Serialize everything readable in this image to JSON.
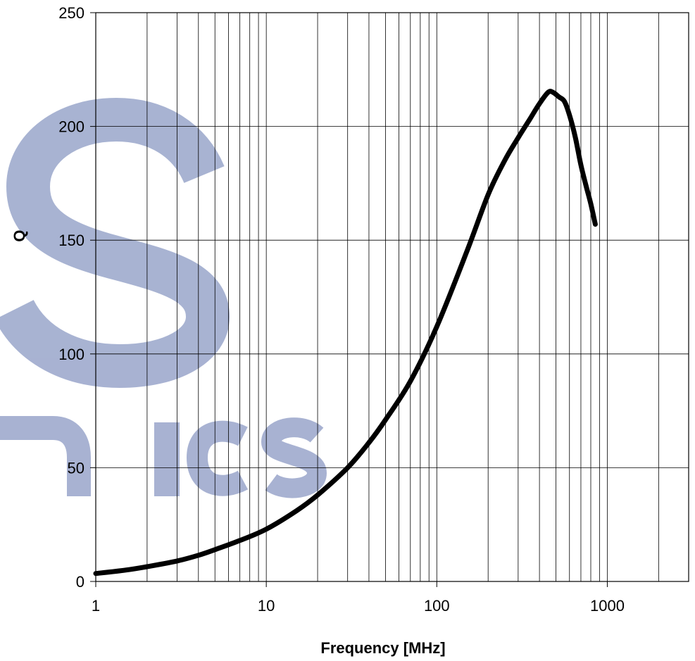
{
  "chart_data": {
    "type": "line",
    "title": "",
    "xlabel": "Frequency [MHz]",
    "ylabel": "Q",
    "x_scale": "log",
    "xlim": [
      1,
      3000
    ],
    "ylim": [
      0,
      250
    ],
    "x_ticks": [
      1,
      10,
      100,
      1000
    ],
    "x_tick_labels": [
      "1",
      "10",
      "100",
      "1000"
    ],
    "y_ticks": [
      0,
      50,
      100,
      150,
      200,
      250
    ],
    "y_tick_labels": [
      "0",
      "50",
      "100",
      "150",
      "200",
      "250"
    ],
    "grid": true,
    "legend": "none",
    "series": [
      {
        "color": "#000000",
        "x": [
          1,
          1.5,
          2,
          3,
          4,
          5,
          7,
          10,
          15,
          20,
          30,
          40,
          50,
          70,
          100,
          150,
          200,
          250,
          300,
          350,
          400,
          450,
          480,
          520,
          560,
          600,
          650,
          700,
          750,
          800,
          850
        ],
        "y": [
          3.5,
          5,
          6.5,
          9,
          11.5,
          14,
          18,
          23,
          31,
          38,
          50,
          61,
          71,
          88,
          112,
          145,
          170,
          185,
          195,
          203,
          210,
          215,
          215,
          213,
          211,
          205,
          195,
          183,
          174,
          166,
          157
        ]
      }
    ],
    "watermark_text": "S nics",
    "watermark_color": "#7384B7"
  }
}
